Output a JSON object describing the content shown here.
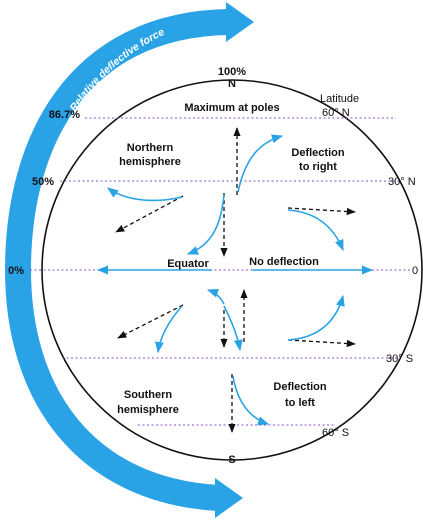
{
  "force_band": {
    "label": "Relative deflective force",
    "color": "#2aa3e6"
  },
  "percentages": {
    "pole": "100%",
    "lat60": "86.7%",
    "lat30": "50%",
    "equator": "0%"
  },
  "poles": {
    "north": "N",
    "south": "S"
  },
  "latitudes": {
    "heading": "Latitude",
    "n60": "60° N",
    "n30": "30° N",
    "eq": "0",
    "s30": "30° S",
    "s60": "60° S"
  },
  "labels": {
    "maximum": "Maximum at poles",
    "north_hemi_1": "Northern",
    "north_hemi_2": "hemisphere",
    "deflect_right_1": "Deflection",
    "deflect_right_2": "to right",
    "equator": "Equator",
    "no_deflection": "No deflection",
    "south_hemi_1": "Southern",
    "south_hemi_2": "hemisphere",
    "deflect_left_1": "Deflection",
    "deflect_left_2": "to left"
  },
  "colors": {
    "globe": "#111111",
    "arrow": "#2aa3e6",
    "line": "#8a4fc8"
  }
}
